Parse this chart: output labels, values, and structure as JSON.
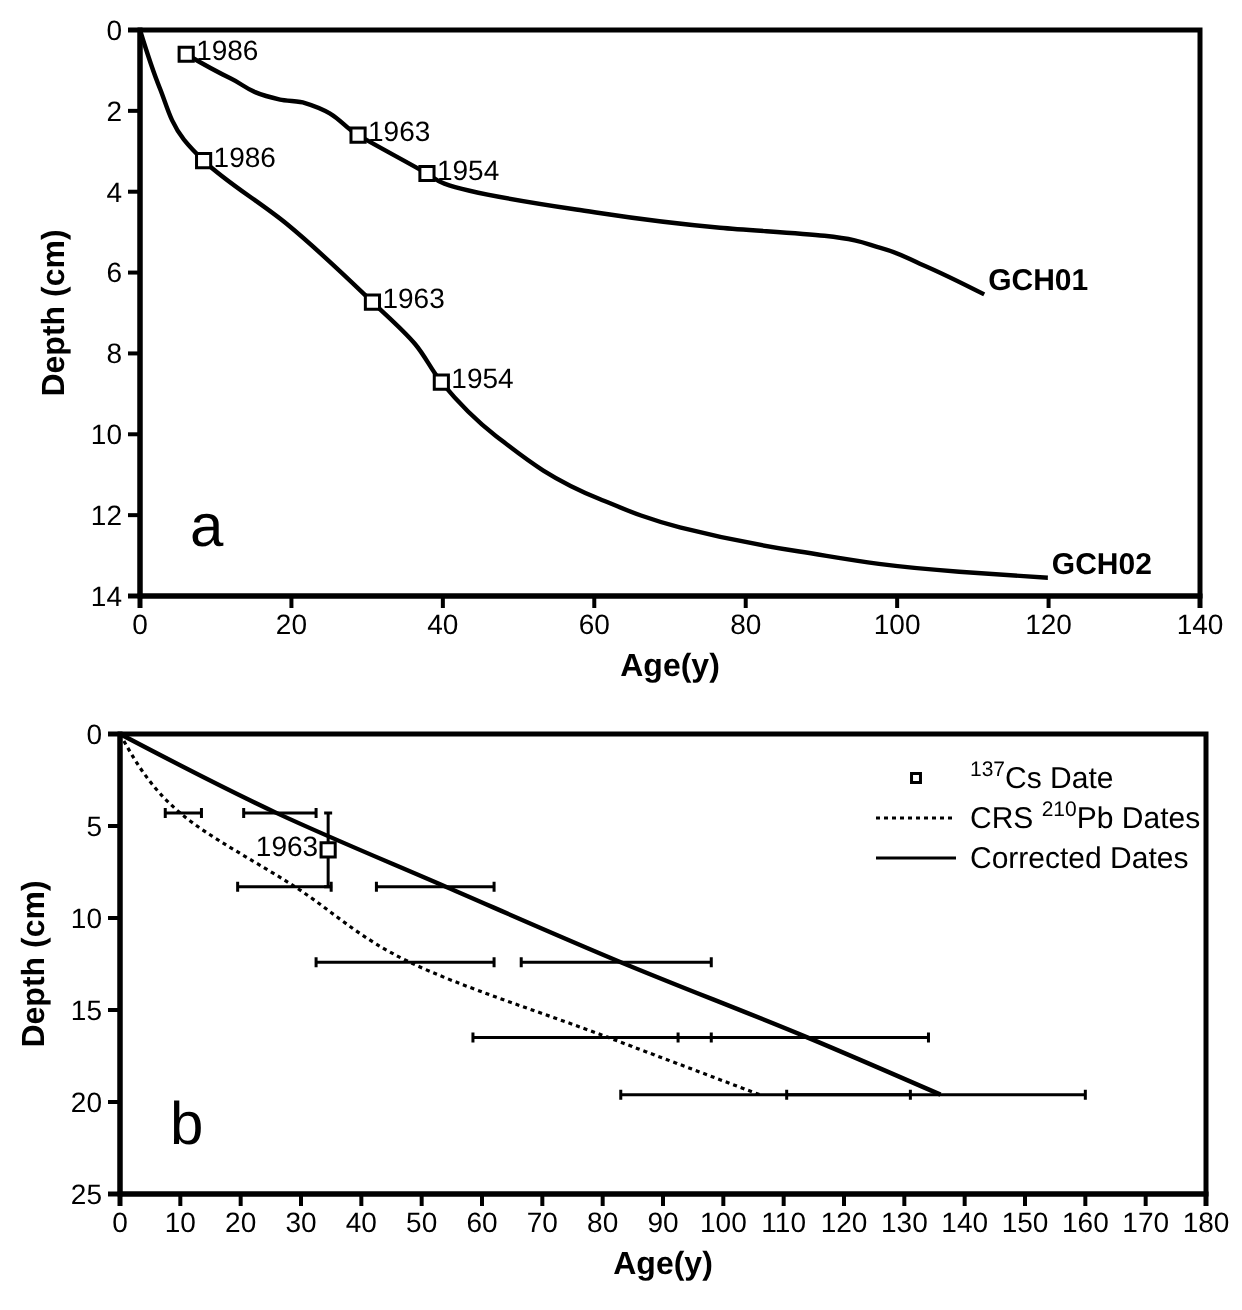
{
  "chart_data": [
    {
      "type": "line",
      "xlabel": "Age(y)",
      "ylabel": "Depth (cm)",
      "xlim": [
        0,
        140
      ],
      "ylim": [
        14,
        0
      ],
      "xticks": [
        0,
        20,
        40,
        60,
        80,
        100,
        120,
        140
      ],
      "yticks": [
        0,
        2,
        4,
        6,
        8,
        10,
        12,
        14
      ],
      "legend": false,
      "grid": false,
      "line_style": "solid",
      "series": [
        {
          "name": "GCH01",
          "color": "#000000",
          "x": [
            6.1,
            12,
            18.5,
            21.7,
            28.8,
            37.9,
            40.2,
            57.6,
            76.6,
            90.4,
            97.8,
            103,
            111.5
          ],
          "values": [
            0.6,
            1.2,
            1.72,
            1.8,
            2.6,
            3.55,
            3.8,
            4.44,
            4.89,
            5.09,
            5.39,
            5.78,
            6.54
          ]
        },
        {
          "name": "GCH02",
          "color": "#000000",
          "x": [
            0,
            2.6,
            5.8,
            8.4,
            19.4,
            30.7,
            36.3,
            39.8,
            47,
            60.7,
            71.3,
            87.1,
            108.2,
            119.9
          ],
          "values": [
            0,
            1.43,
            2.71,
            3.23,
            4.8,
            6.73,
            7.76,
            8.71,
            10.04,
            11.6,
            12.3,
            12.9,
            13.4,
            13.55
          ]
        },
        {
          "type": "scatter",
          "marker": "square",
          "color": "#000000",
          "x": [
            6.1,
            28.8,
            37.9,
            8.4,
            30.7,
            39.8
          ],
          "values": [
            0.6,
            2.6,
            3.55,
            3.23,
            6.73,
            8.71
          ]
        }
      ],
      "annotations": [
        {
          "text": "1986",
          "x": 6.1,
          "y": 0.6
        },
        {
          "text": "1963",
          "x": 28.8,
          "y": 2.6
        },
        {
          "text": "1954",
          "x": 37.9,
          "y": 3.55
        },
        {
          "text": "1986",
          "x": 8.4,
          "y": 3.23
        },
        {
          "text": "1963",
          "x": 30.7,
          "y": 6.73
        },
        {
          "text": "1954",
          "x": 39.8,
          "y": 8.71
        },
        "a"
      ]
    },
    {
      "type": "line",
      "xlabel": "Age(y)",
      "ylabel": "Depth (cm)",
      "xlim": [
        0,
        180
      ],
      "ylim": [
        25,
        0
      ],
      "xticks": [
        0,
        10,
        20,
        30,
        40,
        50,
        60,
        70,
        80,
        90,
        100,
        110,
        120,
        130,
        140,
        150,
        160,
        170,
        180
      ],
      "yticks": [
        0,
        5,
        10,
        15,
        20,
        25
      ],
      "legend": "top right",
      "grid": false,
      "series": [
        {
          "name": "$^{137}$Cs Date",
          "type": "scatter",
          "marker": "square",
          "color": "#000000",
          "x": [
            34.5
          ],
          "values": [
            6.3
          ],
          "errors": [
            [
              4.3,
              8.3
            ]
          ]
        },
        {
          "name": "CRS $^{210}$Pb Dates",
          "color": "#000000",
          "line_style": "dotted",
          "x": [
            0,
            10,
            29,
            48,
            81,
            106
          ],
          "values": [
            0,
            4.3,
            8.3,
            12.4,
            16.5,
            19.6
          ],
          "xerrors": [
            null,
            [
              7.5,
              13.5
            ],
            [
              19.5,
              35
            ],
            [
              32.5,
              62
            ],
            [
              58.5,
              98
            ],
            [
              83,
              131
            ]
          ]
        },
        {
          "name": "Corrected Dates",
          "color": "#000000",
          "line_style": "solid",
          "x": [
            0,
            26,
            54,
            83,
            114,
            136
          ],
          "values": [
            0,
            4.3,
            8.3,
            12.4,
            16.5,
            19.6
          ],
          "xerrors": [
            null,
            [
              20.5,
              32.5
            ],
            [
              42.5,
              62
            ],
            [
              66.5,
              98
            ],
            [
              92.5,
              134
            ],
            [
              110.5,
              160
            ]
          ]
        }
      ],
      "annotations": [
        {
          "text": "1963",
          "x": 34.5,
          "y": 6.3
        },
        "b"
      ]
    }
  ]
}
